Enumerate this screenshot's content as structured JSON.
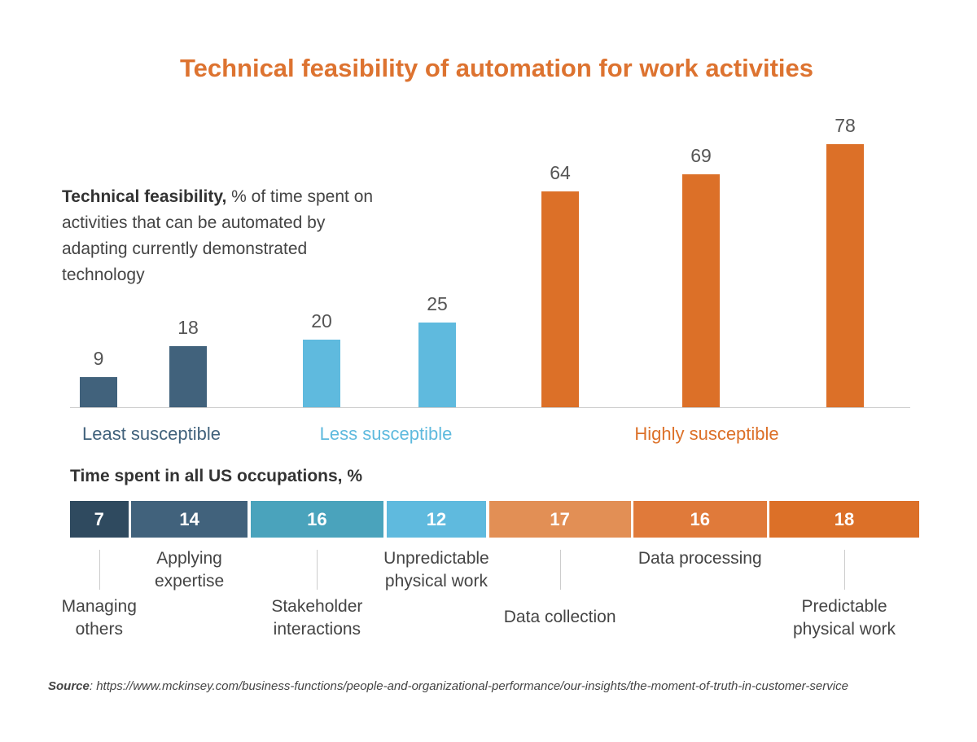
{
  "chart_data": [
    {
      "type": "bar",
      "title": "Technical feasibility of automation for work activities",
      "description_bold": "Technical feasibility,",
      "description_rest": " % of time spent on activities that can be automated by adapting currently demonstrated technology",
      "values": [
        9,
        18,
        20,
        25,
        64,
        69,
        78
      ],
      "groups": [
        {
          "label": "Least susceptible",
          "color": "#41627c",
          "indices": [
            0,
            1
          ]
        },
        {
          "label": "Less susceptible",
          "color": "#5fbade",
          "indices": [
            2,
            3
          ]
        },
        {
          "label": "Highly susceptible",
          "color": "#dc7028",
          "indices": [
            4,
            5,
            6
          ]
        }
      ],
      "ylim": [
        0,
        80
      ]
    },
    {
      "type": "bar",
      "orientation": "stacked-horizontal",
      "title": "Time spent in all US occupations, %",
      "segments": [
        {
          "label": "Managing others",
          "value": 7,
          "color": "#2f4a5f"
        },
        {
          "label": "Applying expertise",
          "value": 14,
          "color": "#41627c"
        },
        {
          "label": "Stakeholder interactions",
          "value": 16,
          "color": "#4aa3bc"
        },
        {
          "label": "Unpredictable physical work",
          "value": 12,
          "color": "#5fbade"
        },
        {
          "label": "Data collection",
          "value": 17,
          "color": "#e28f55"
        },
        {
          "label": "Data processing",
          "value": 16,
          "color": "#e07a3a"
        },
        {
          "label": "Predictable physical work",
          "value": 18,
          "color": "#dc7028"
        }
      ]
    }
  ],
  "source_label": "Source",
  "source_text": ": https://www.mckinsey.com/business-functions/people-and-organizational-performance/our-insights/the-moment-of-truth-in-customer-service"
}
